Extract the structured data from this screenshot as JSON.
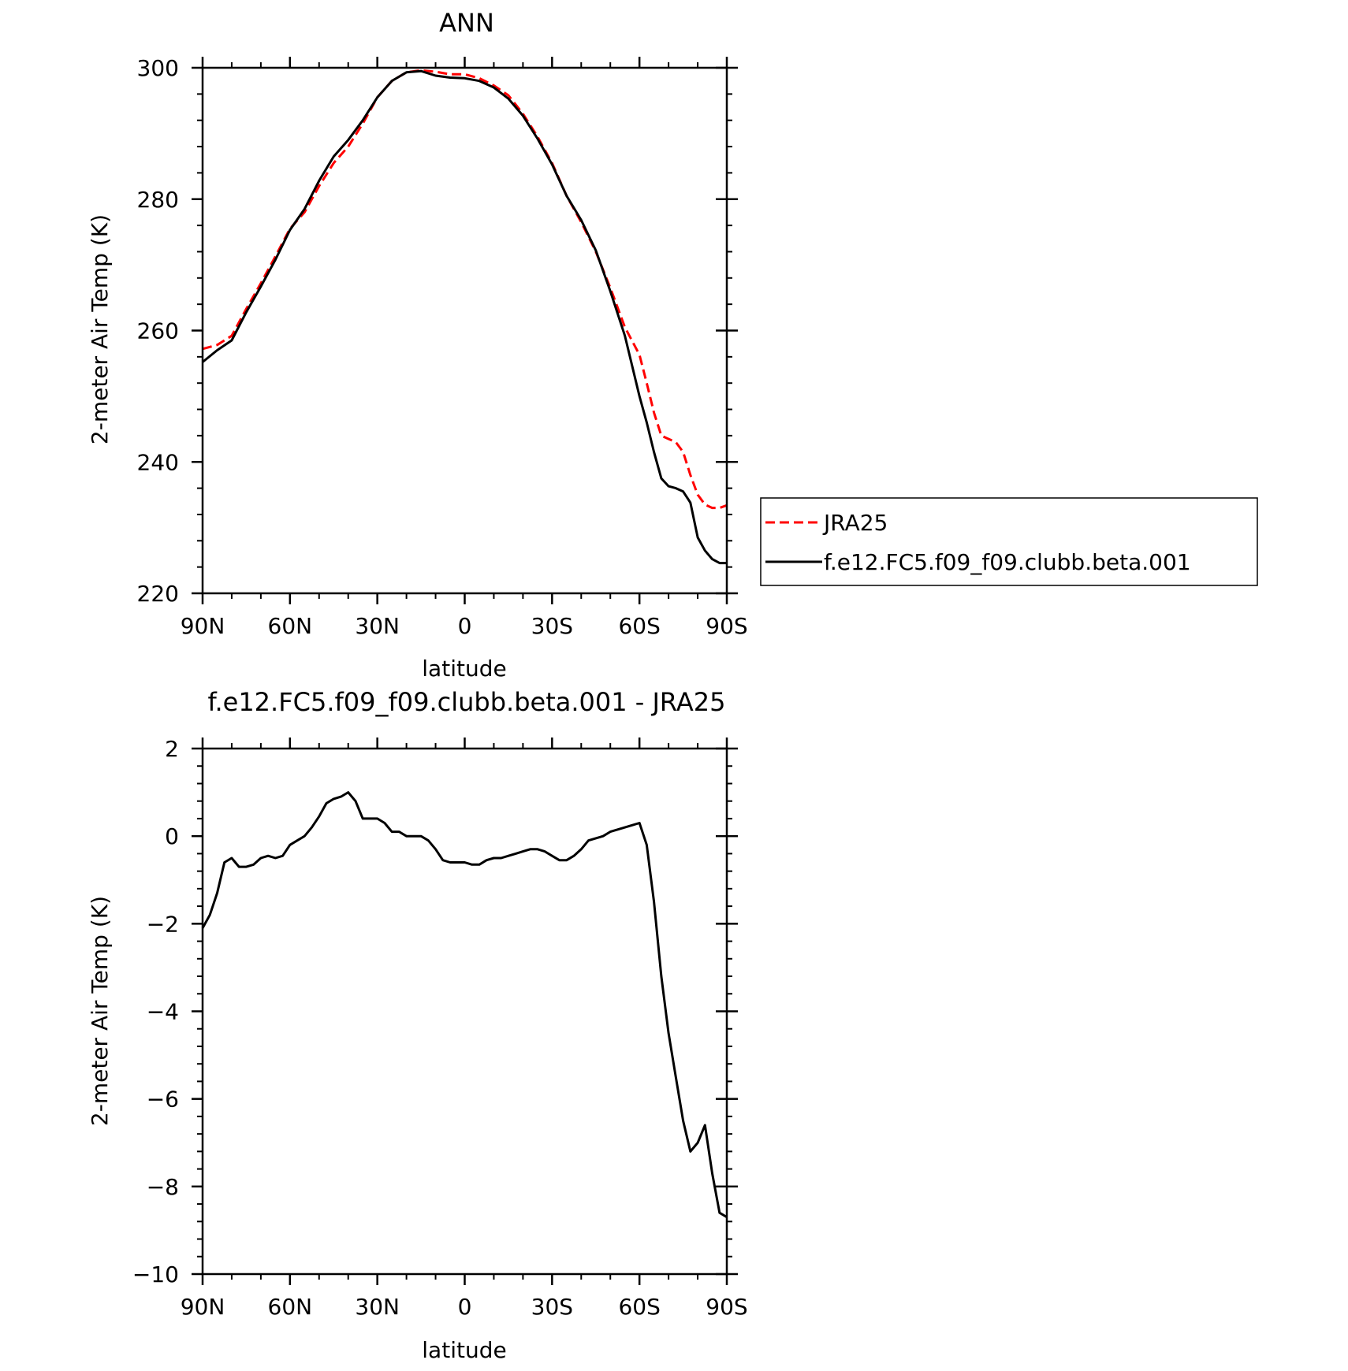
{
  "chart_data": [
    {
      "type": "line",
      "title": "ANN",
      "xlabel": "latitude",
      "ylabel": "2-meter Air Temp (K)",
      "xlim": [
        90,
        -90
      ],
      "ylim": [
        220,
        300
      ],
      "x_tick_values": [
        90,
        60,
        30,
        0,
        -30,
        -60,
        -90
      ],
      "x_tick_labels": [
        "90N",
        "60N",
        "30N",
        "0",
        "30S",
        "60S",
        "90S"
      ],
      "y_ticks": [
        220,
        240,
        260,
        280,
        300
      ],
      "y_tick_labels": [
        "220",
        "240",
        "260",
        "280",
        "300"
      ],
      "grid": false,
      "legend_position": "right",
      "x": [
        90,
        85,
        80,
        75,
        70,
        65,
        60,
        55,
        50,
        45,
        40,
        35,
        30,
        25,
        20,
        15,
        10,
        5,
        0,
        -5,
        -10,
        -15,
        -20,
        -25,
        -30,
        -35,
        -40,
        -45,
        -50,
        -55,
        -60,
        -62.5,
        -65,
        -67.5,
        -70,
        -72.5,
        -75,
        -77.5,
        -80,
        -82.5,
        -85,
        -87.5,
        -90
      ],
      "series": [
        {
          "name": "JRA25",
          "color": "#ff0000",
          "dash": "dashed",
          "values": [
            257.2,
            257.8,
            259.2,
            263.3,
            267.2,
            271.3,
            275.5,
            278.0,
            282.0,
            285.5,
            288.0,
            291.5,
            295.5,
            298.0,
            299.3,
            299.6,
            299.4,
            299.0,
            299.0,
            298.4,
            297.3,
            295.8,
            293.0,
            289.5,
            285.5,
            280.5,
            276.5,
            272.0,
            266.5,
            260.5,
            256.3,
            252.0,
            247.5,
            244.0,
            243.5,
            243.0,
            241.5,
            238.0,
            235.0,
            233.5,
            233.0,
            233.0,
            233.4
          ]
        },
        {
          "name": "f.e12.FC5.f09_f09.clubb.beta.001",
          "color": "#000000",
          "dash": "solid",
          "values": [
            255.2,
            257.0,
            258.5,
            262.8,
            266.7,
            270.8,
            275.3,
            278.5,
            282.8,
            286.5,
            289.0,
            292.0,
            295.5,
            298.0,
            299.3,
            299.5,
            298.8,
            298.5,
            298.4,
            298.0,
            297.0,
            295.3,
            292.7,
            289.2,
            285.3,
            280.5,
            276.8,
            272.2,
            266.0,
            259.2,
            250.0,
            246.0,
            241.5,
            237.5,
            236.3,
            236.0,
            235.5,
            233.8,
            228.5,
            226.5,
            225.2,
            224.6,
            224.6
          ]
        }
      ]
    },
    {
      "type": "line",
      "title": "f.e12.FC5.f09_f09.clubb.beta.001 - JRA25",
      "xlabel": "latitude",
      "ylabel": "2-meter Air Temp (K)",
      "xlim": [
        90,
        -90
      ],
      "ylim": [
        -10,
        2
      ],
      "x_tick_values": [
        90,
        60,
        30,
        0,
        -30,
        -60,
        -90
      ],
      "x_tick_labels": [
        "90N",
        "60N",
        "30N",
        "0",
        "30S",
        "60S",
        "90S"
      ],
      "y_ticks": [
        -10,
        -8,
        -6,
        -4,
        -2,
        0,
        2
      ],
      "y_tick_labels": [
        "−10",
        "−8",
        "−6",
        "−4",
        "−2",
        "0",
        "2"
      ],
      "grid": false,
      "x": [
        90,
        87.5,
        85,
        82.5,
        80,
        77.5,
        75,
        72.5,
        70,
        67.5,
        65,
        62.5,
        60,
        57.5,
        55,
        52.5,
        50,
        47.5,
        45,
        42.5,
        40,
        37.5,
        35,
        32.5,
        30,
        27.5,
        25,
        22.5,
        20,
        17.5,
        15,
        12.5,
        10,
        7.5,
        5,
        2.5,
        0,
        -2.5,
        -5,
        -7.5,
        -10,
        -12.5,
        -15,
        -17.5,
        -20,
        -22.5,
        -25,
        -27.5,
        -30,
        -32.5,
        -35,
        -37.5,
        -40,
        -42.5,
        -45,
        -47.5,
        -50,
        -52.5,
        -55,
        -57.5,
        -60,
        -62.5,
        -65,
        -67.5,
        -70,
        -72.5,
        -75,
        -77.5,
        -80,
        -82.5,
        -85,
        -87.5,
        -90
      ],
      "series": [
        {
          "name": "",
          "color": "#000000",
          "dash": "solid",
          "values": [
            -2.1,
            -1.8,
            -1.3,
            -0.6,
            -0.5,
            -0.7,
            -0.7,
            -0.65,
            -0.5,
            -0.45,
            -0.5,
            -0.45,
            -0.2,
            -0.1,
            0.0,
            0.2,
            0.45,
            0.75,
            0.85,
            0.9,
            1.0,
            0.8,
            0.4,
            0.4,
            0.4,
            0.3,
            0.1,
            0.1,
            0.0,
            0.0,
            0.0,
            -0.1,
            -0.3,
            -0.55,
            -0.6,
            -0.6,
            -0.6,
            -0.65,
            -0.65,
            -0.55,
            -0.5,
            -0.5,
            -0.45,
            -0.4,
            -0.35,
            -0.3,
            -0.3,
            -0.35,
            -0.45,
            -0.55,
            -0.55,
            -0.45,
            -0.3,
            -0.1,
            -0.05,
            0.0,
            0.1,
            0.15,
            0.2,
            0.25,
            0.3,
            -0.2,
            -1.5,
            -3.2,
            -4.5,
            -5.5,
            -6.5,
            -7.2,
            -7.0,
            -6.6,
            -7.7,
            -8.6,
            -8.7
          ]
        }
      ]
    }
  ]
}
